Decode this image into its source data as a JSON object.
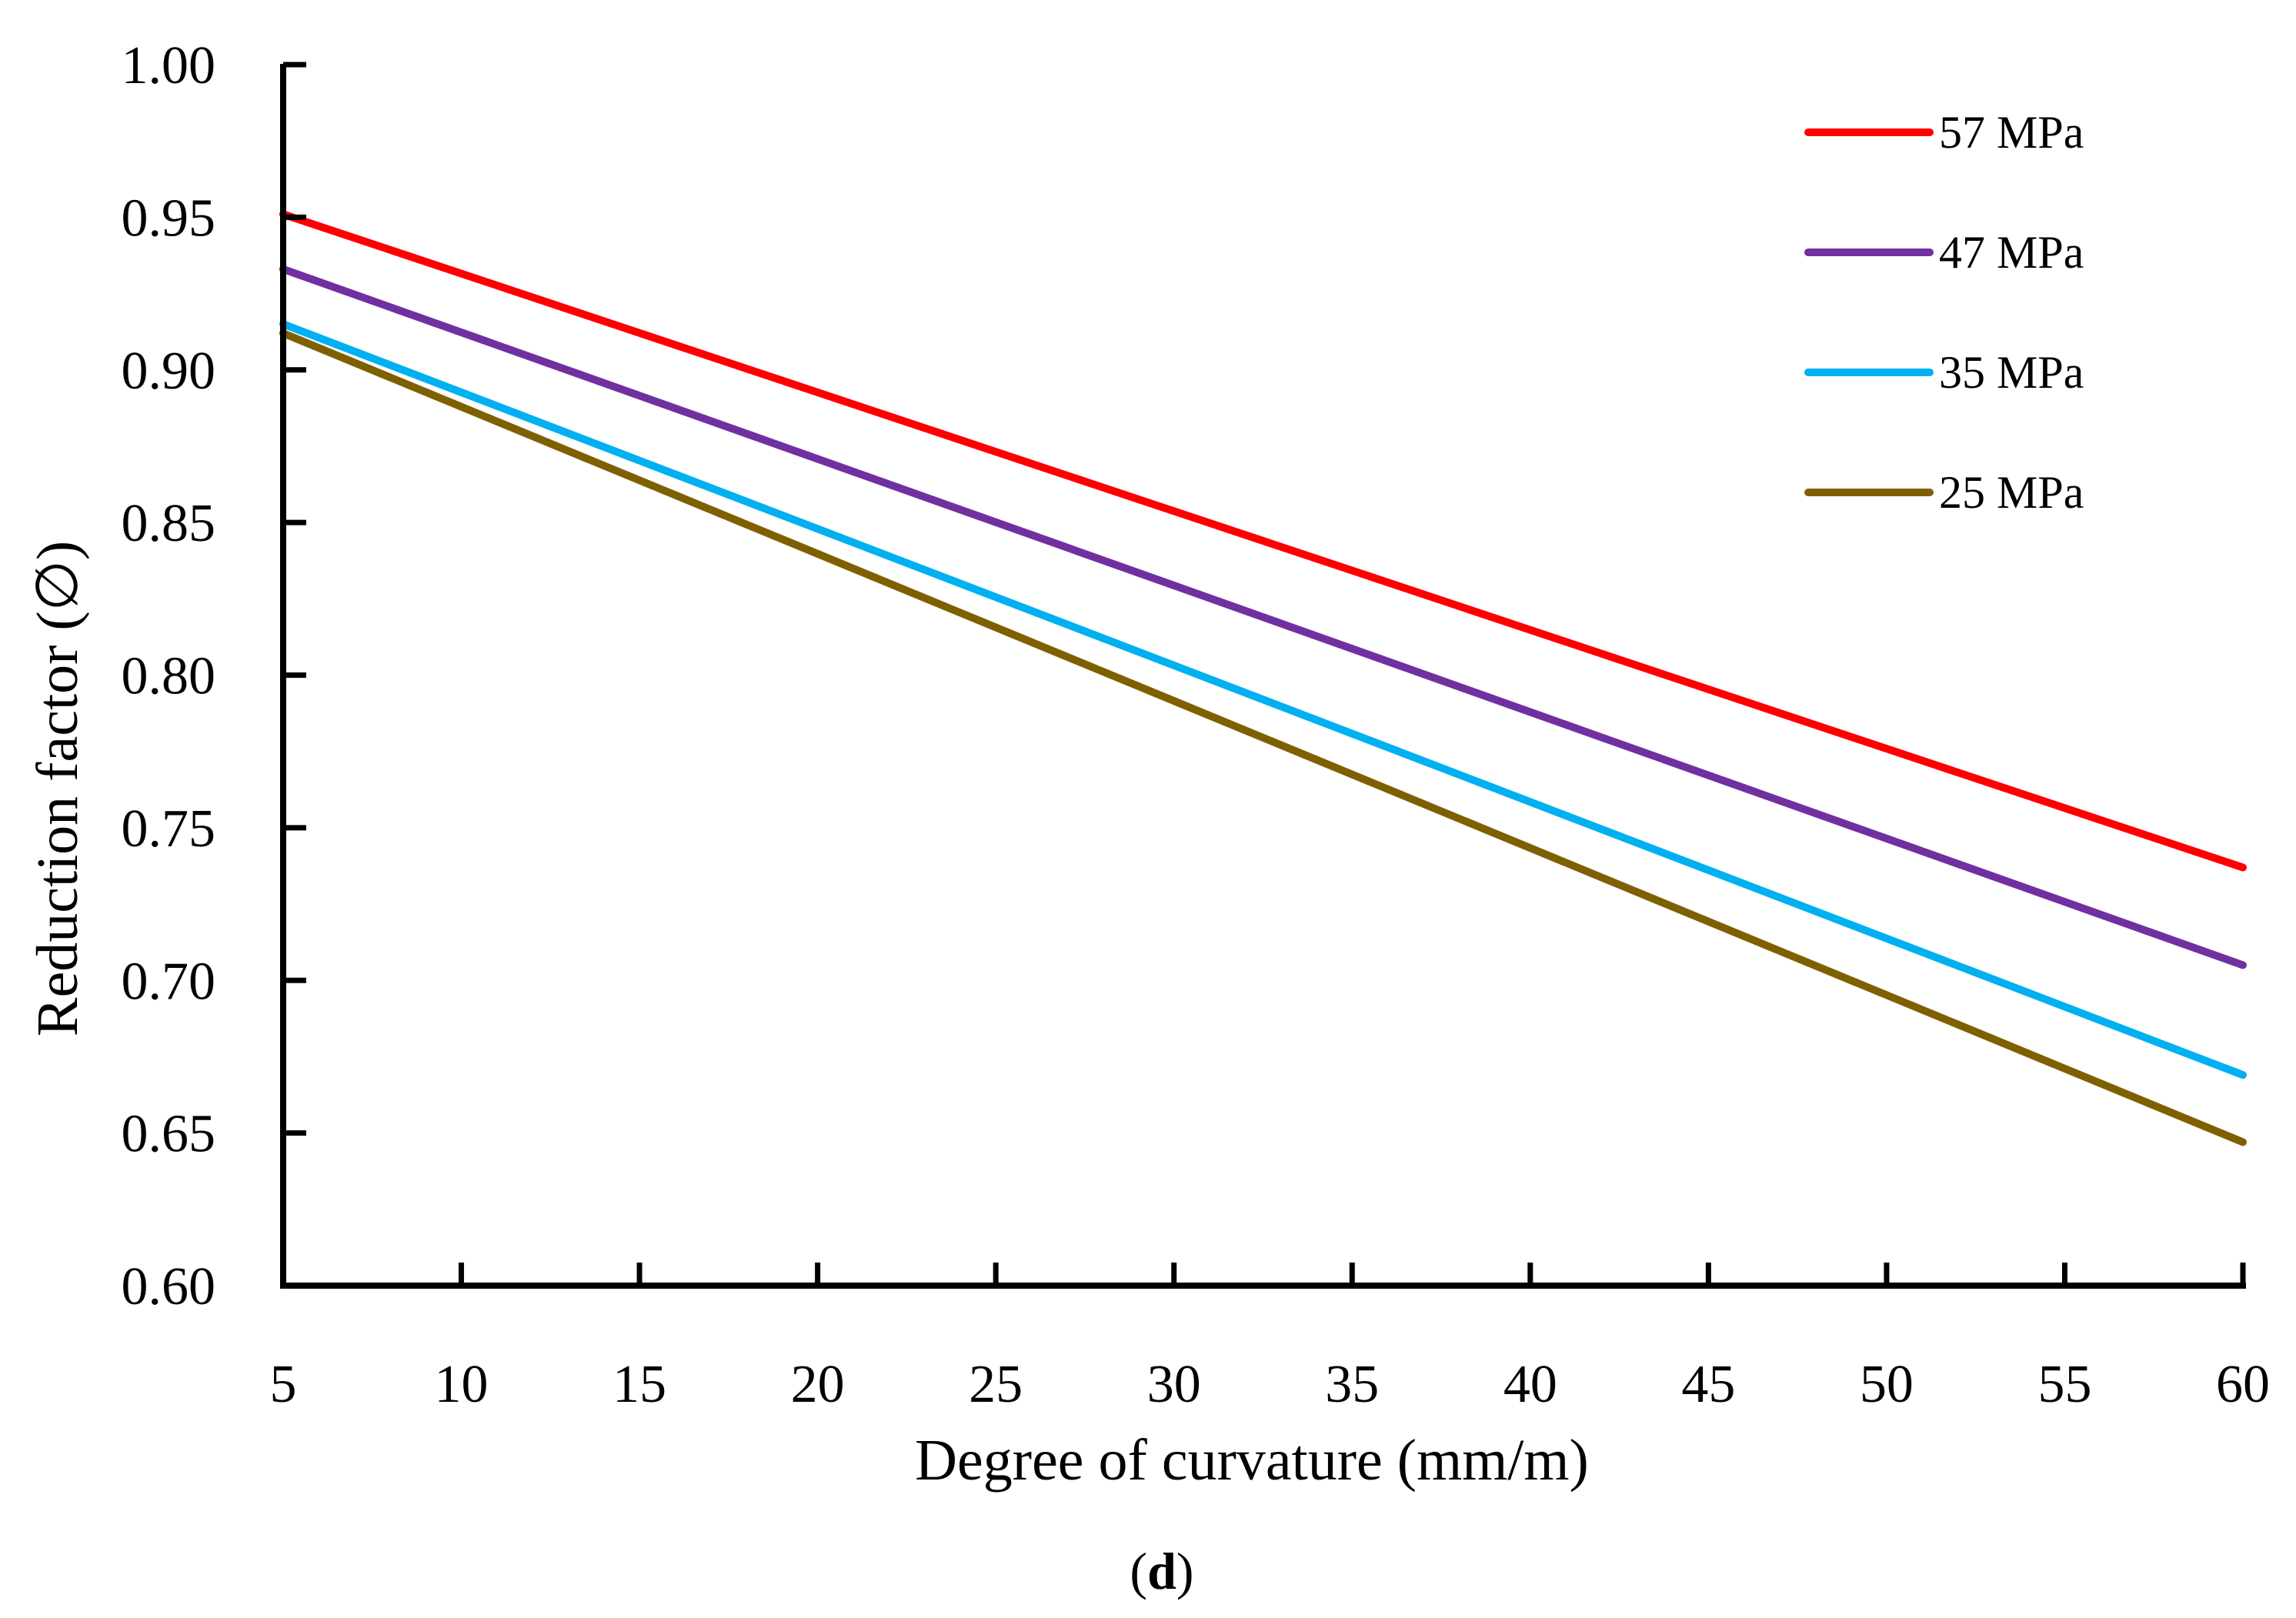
{
  "chart_data": {
    "type": "line",
    "title": "",
    "xlabel": "Degree of curvature (mm/m)",
    "ylabel": "Reduction factor (∅)",
    "xlim": [
      5,
      60
    ],
    "ylim": [
      0.6,
      1.0
    ],
    "x_ticks": [
      "5",
      "10",
      "15",
      "20",
      "25",
      "30",
      "35",
      "40",
      "45",
      "50",
      "55",
      "60"
    ],
    "y_ticks": [
      "0.60",
      "0.65",
      "0.70",
      "0.75",
      "0.80",
      "0.85",
      "0.90",
      "0.95",
      "1.00"
    ],
    "x_tick_values": [
      5,
      10,
      15,
      20,
      25,
      30,
      35,
      40,
      45,
      50,
      55,
      60
    ],
    "y_tick_values": [
      0.6,
      0.65,
      0.7,
      0.75,
      0.8,
      0.85,
      0.9,
      0.95,
      1.0
    ],
    "grid": false,
    "legend_position": "top-right",
    "series": [
      {
        "name": "57 MPa",
        "color": "#ff0000",
        "x": [
          5,
          60
        ],
        "y": [
          0.951,
          0.737
        ]
      },
      {
        "name": "47 MPa",
        "color": "#7030a0",
        "x": [
          5,
          60
        ],
        "y": [
          0.933,
          0.705
        ]
      },
      {
        "name": "35 MPa",
        "color": "#00b0f0",
        "x": [
          5,
          60
        ],
        "y": [
          0.915,
          0.669
        ]
      },
      {
        "name": "25 MPa",
        "color": "#7f6000",
        "x": [
          5,
          60
        ],
        "y": [
          0.912,
          0.647
        ]
      }
    ]
  },
  "caption": {
    "open": "(",
    "letter": "d",
    "close": ")"
  }
}
